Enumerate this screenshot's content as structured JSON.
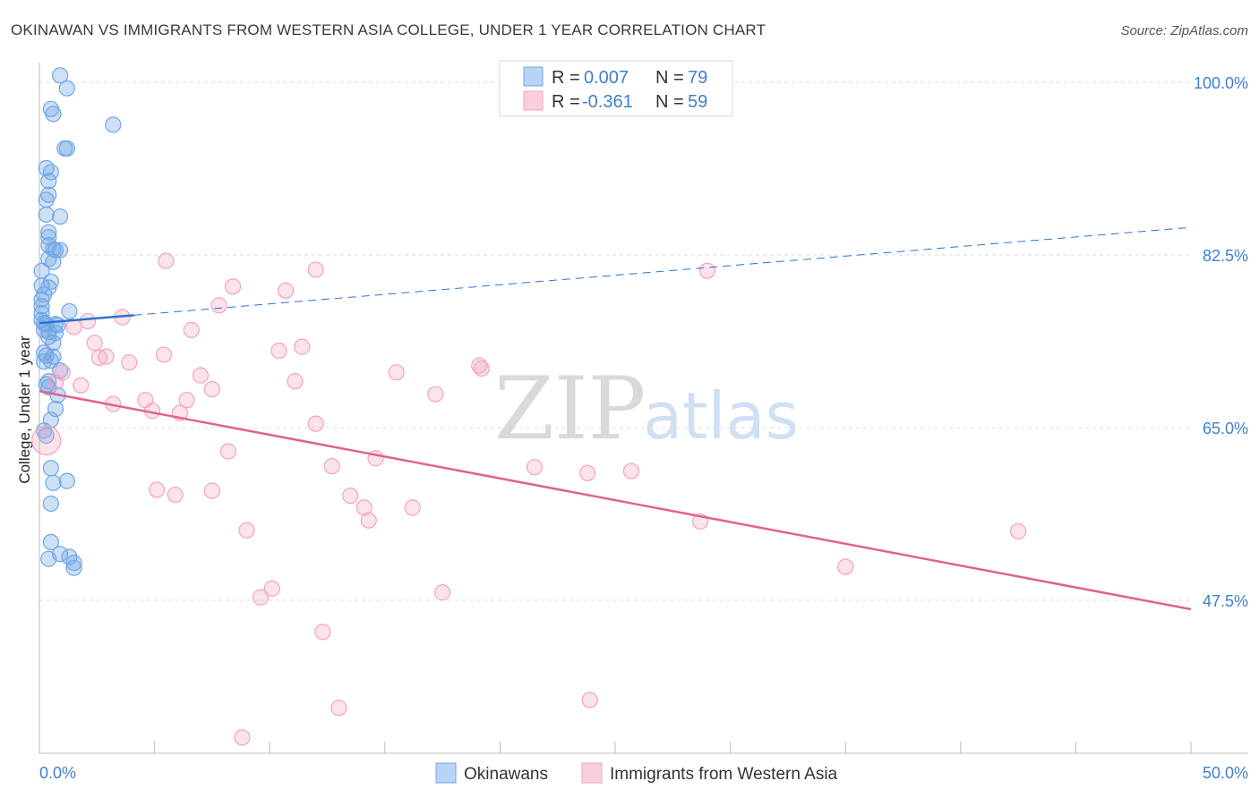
{
  "chart_data": {
    "type": "scatter",
    "title": "OKINAWAN VS IMMIGRANTS FROM WESTERN ASIA COLLEGE, UNDER 1 YEAR CORRELATION CHART",
    "source": "Source: ZipAtlas.com",
    "ylabel": "College, Under 1 year",
    "xlabel": "",
    "xlim": [
      0,
      50
    ],
    "ylim": [
      32,
      102
    ],
    "x_tick_labels": [
      {
        "value": 0,
        "label": "0.0%"
      },
      {
        "value": 50,
        "label": "50.0%"
      }
    ],
    "y_tick_labels": [
      {
        "value": 100,
        "label": "100.0%"
      },
      {
        "value": 82.5,
        "label": "82.5%"
      },
      {
        "value": 65,
        "label": "65.0%"
      },
      {
        "value": 47.5,
        "label": "47.5%"
      }
    ],
    "grid": true,
    "watermark": {
      "zip": "ZIP",
      "atlas": "atlas"
    },
    "legend": {
      "position": "top-center",
      "entries": [
        {
          "r_label": "R =",
          "r_value": "0.007",
          "n_label": "N =",
          "n_value": "79"
        },
        {
          "r_label": "R =",
          "r_value": "-0.361",
          "n_label": "N =",
          "n_value": "59"
        }
      ]
    },
    "series": [
      {
        "name": "Okinawans",
        "color": "#6fa6e6",
        "line_color": "#2d72d2",
        "trend": {
          "x0": 0,
          "y0": 75.6,
          "x1": 4.1,
          "y1": 76.4,
          "x_dash_end": 50,
          "y_dash_end": 85.3
        },
        "points": [
          [
            0.9,
            100.7
          ],
          [
            1.2,
            99.4
          ],
          [
            0.5,
            97.3
          ],
          [
            0.6,
            96.8
          ],
          [
            3.2,
            95.7
          ],
          [
            1.1,
            93.3
          ],
          [
            1.2,
            93.3
          ],
          [
            0.3,
            91.3
          ],
          [
            0.5,
            90.9
          ],
          [
            0.4,
            90.0
          ],
          [
            0.4,
            88.6
          ],
          [
            0.3,
            88.1
          ],
          [
            0.9,
            86.4
          ],
          [
            0.3,
            86.6
          ],
          [
            0.4,
            84.8
          ],
          [
            0.4,
            84.3
          ],
          [
            0.4,
            83.5
          ],
          [
            0.6,
            83.1
          ],
          [
            0.7,
            83.0
          ],
          [
            0.9,
            83.0
          ],
          [
            0.4,
            82.1
          ],
          [
            0.6,
            81.8
          ],
          [
            0.1,
            80.9
          ],
          [
            0.5,
            79.8
          ],
          [
            0.1,
            79.4
          ],
          [
            0.4,
            79.2
          ],
          [
            0.2,
            78.5
          ],
          [
            0.1,
            78.0
          ],
          [
            0.1,
            77.3
          ],
          [
            1.3,
            76.8
          ],
          [
            0.1,
            76.6
          ],
          [
            0.1,
            75.9
          ],
          [
            0.2,
            75.6
          ],
          [
            0.3,
            75.5
          ],
          [
            0.7,
            75.5
          ],
          [
            0.8,
            75.4
          ],
          [
            0.2,
            74.9
          ],
          [
            0.4,
            74.7
          ],
          [
            0.7,
            74.6
          ],
          [
            0.4,
            74.2
          ],
          [
            0.6,
            73.6
          ],
          [
            0.2,
            72.6
          ],
          [
            0.3,
            72.3
          ],
          [
            0.6,
            72.2
          ],
          [
            0.2,
            71.7
          ],
          [
            0.5,
            71.8
          ],
          [
            0.9,
            70.8
          ],
          [
            0.4,
            69.7
          ],
          [
            0.3,
            69.4
          ],
          [
            0.4,
            69.1
          ],
          [
            0.8,
            68.3
          ],
          [
            0.7,
            66.9
          ],
          [
            0.5,
            65.8
          ],
          [
            0.2,
            64.7
          ],
          [
            0.3,
            64.2
          ],
          [
            0.5,
            60.9
          ],
          [
            1.2,
            59.6
          ],
          [
            0.6,
            59.4
          ],
          [
            0.5,
            57.3
          ],
          [
            0.5,
            53.4
          ],
          [
            0.9,
            52.2
          ],
          [
            1.3,
            51.9
          ],
          [
            1.5,
            51.3
          ],
          [
            0.4,
            51.7
          ],
          [
            1.5,
            50.8
          ]
        ]
      },
      {
        "name": "Immigrants from Western Asia",
        "color": "#f2a3bd",
        "line_color": "#e0628f",
        "trend": {
          "x0": 0,
          "y0": 68.7,
          "x1": 50,
          "y1": 46.6
        },
        "points": [
          [
            0.3,
            63.7
          ],
          [
            5.5,
            81.9
          ],
          [
            12.0,
            81.0
          ],
          [
            29.0,
            80.9
          ],
          [
            8.4,
            79.3
          ],
          [
            10.7,
            78.9
          ],
          [
            7.8,
            77.4
          ],
          [
            3.6,
            76.2
          ],
          [
            2.1,
            75.8
          ],
          [
            1.5,
            75.2
          ],
          [
            6.6,
            74.9
          ],
          [
            2.4,
            73.6
          ],
          [
            11.4,
            73.2
          ],
          [
            10.4,
            72.8
          ],
          [
            5.4,
            72.4
          ],
          [
            2.9,
            72.2
          ],
          [
            2.6,
            72.1
          ],
          [
            3.9,
            71.6
          ],
          [
            19.1,
            71.3
          ],
          [
            19.2,
            71.0
          ],
          [
            15.5,
            70.6
          ],
          [
            1.0,
            70.6
          ],
          [
            0.7,
            69.6
          ],
          [
            7.0,
            70.3
          ],
          [
            11.1,
            69.7
          ],
          [
            1.8,
            69.3
          ],
          [
            7.5,
            68.9
          ],
          [
            17.2,
            68.4
          ],
          [
            4.6,
            67.8
          ],
          [
            6.4,
            67.8
          ],
          [
            3.2,
            67.4
          ],
          [
            4.9,
            66.7
          ],
          [
            6.1,
            66.5
          ],
          [
            12.0,
            65.4
          ],
          [
            8.2,
            62.6
          ],
          [
            14.6,
            61.9
          ],
          [
            12.7,
            61.1
          ],
          [
            21.5,
            61.0
          ],
          [
            23.8,
            60.4
          ],
          [
            25.7,
            60.6
          ],
          [
            5.1,
            58.7
          ],
          [
            7.5,
            58.6
          ],
          [
            5.9,
            58.2
          ],
          [
            13.5,
            58.1
          ],
          [
            14.1,
            56.9
          ],
          [
            16.2,
            56.9
          ],
          [
            14.3,
            55.6
          ],
          [
            28.7,
            55.5
          ],
          [
            9.0,
            54.6
          ],
          [
            42.5,
            54.5
          ],
          [
            35.0,
            50.9
          ],
          [
            10.1,
            48.7
          ],
          [
            17.5,
            48.3
          ],
          [
            9.6,
            47.8
          ],
          [
            12.3,
            44.3
          ],
          [
            13.0,
            36.6
          ],
          [
            23.9,
            37.4
          ],
          [
            8.8,
            33.6
          ]
        ]
      }
    ]
  },
  "bottom_legend": {
    "series_1": "Okinawans",
    "series_2": "Immigrants from Western Asia"
  }
}
